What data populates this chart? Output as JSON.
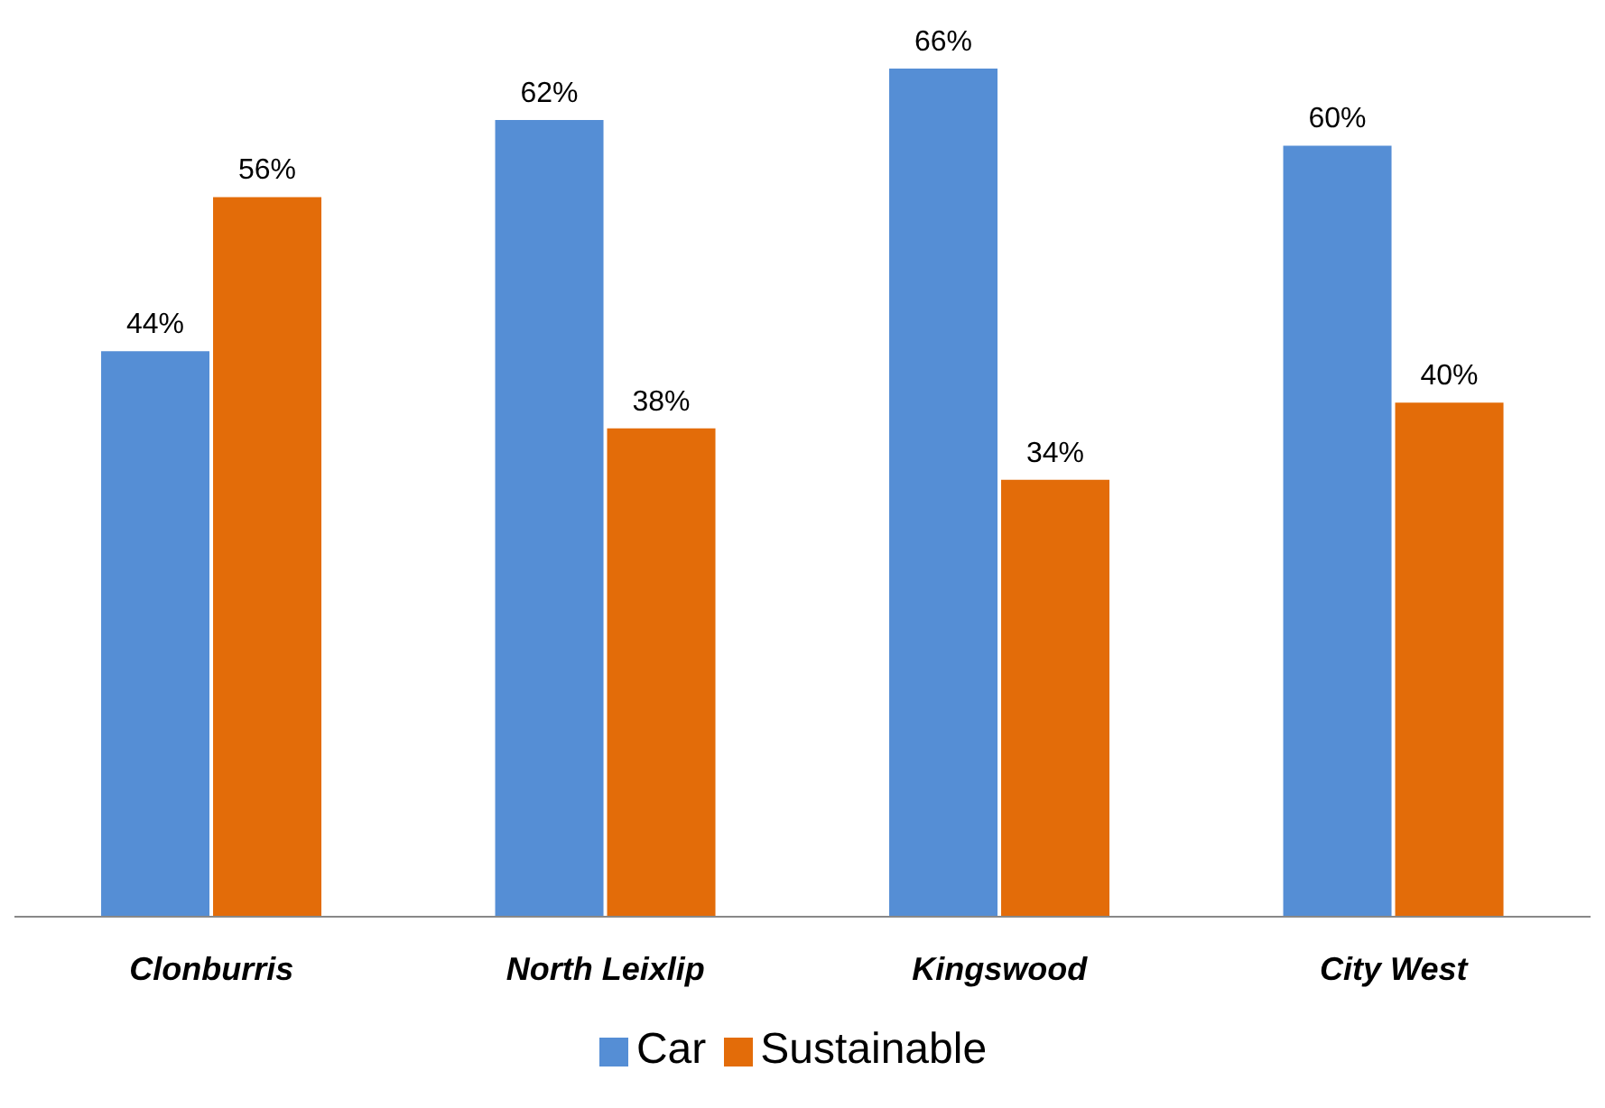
{
  "chart_data": {
    "type": "bar",
    "categories": [
      "Clonburris",
      "North Leixlip",
      "Kingswood",
      "City West"
    ],
    "series": [
      {
        "name": "Car",
        "color": "#558ed5",
        "values": [
          44,
          62,
          66,
          60
        ],
        "value_labels": [
          "44%",
          "62%",
          "66%",
          "60%"
        ]
      },
      {
        "name": "Sustainable",
        "color": "#e36c09",
        "values": [
          56,
          38,
          34,
          40
        ],
        "value_labels": [
          "56%",
          "38%",
          "34%",
          "40%"
        ]
      }
    ],
    "grid": false,
    "legend": "bottom"
  }
}
